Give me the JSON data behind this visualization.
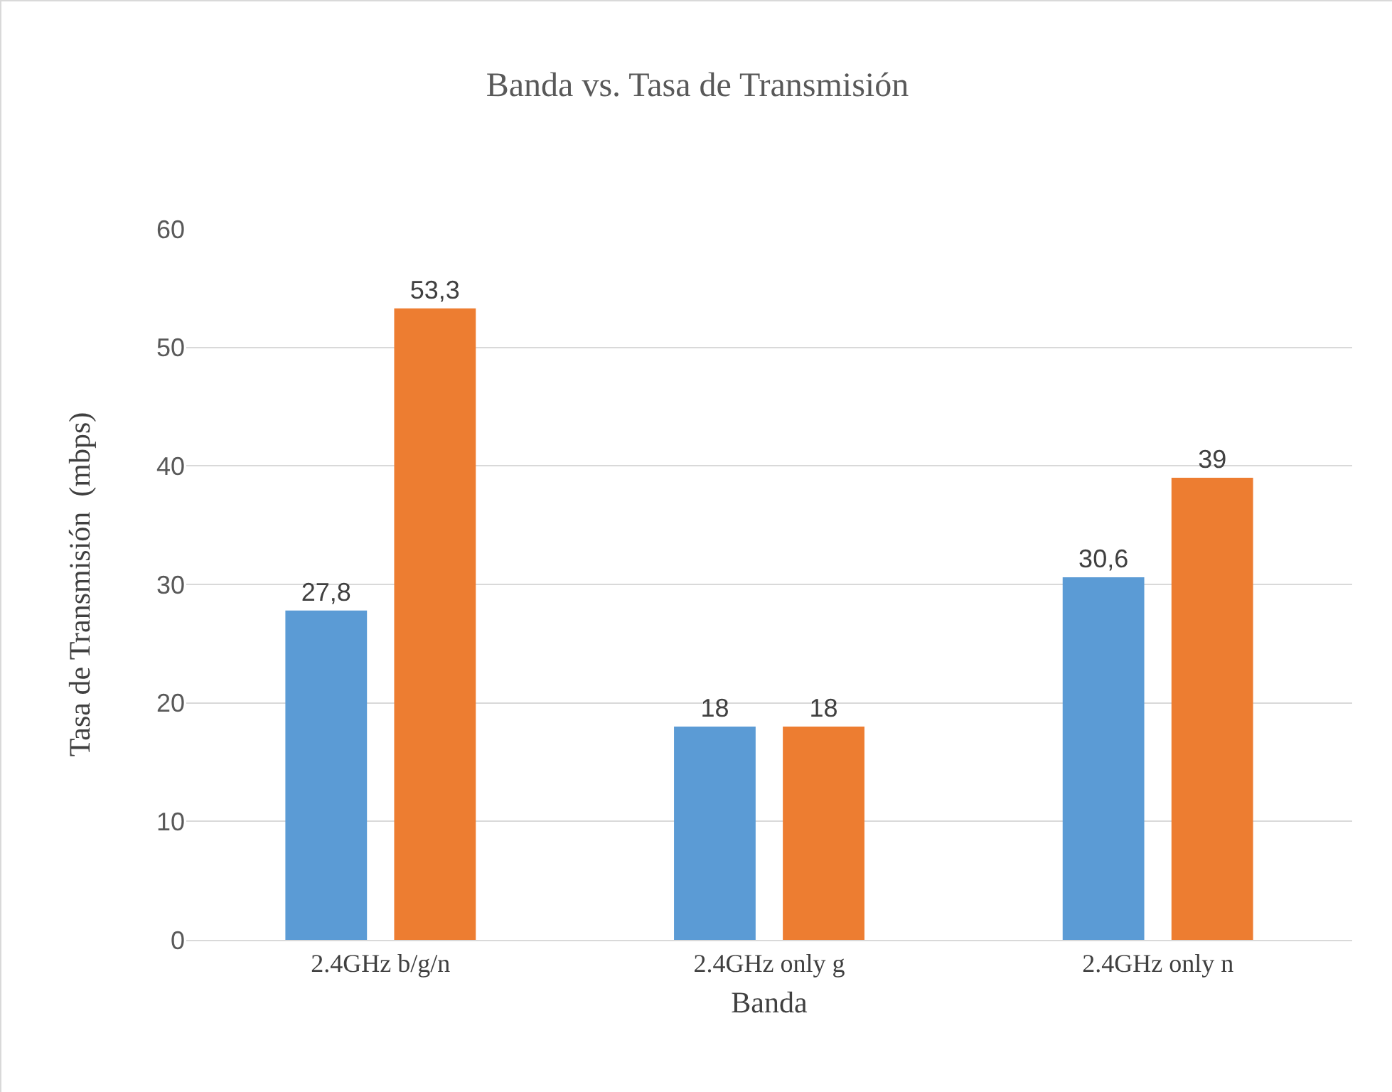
{
  "chart_data": {
    "type": "bar",
    "title": "Banda vs. Tasa de Transmisión",
    "xlabel": "Banda",
    "ylabel": "Tasa de Transmisión  (mbps)",
    "categories": [
      "2.4GHz b/g/n",
      "2.4GHz only g",
      "2.4GHz only n"
    ],
    "series": [
      {
        "color": "#5b9bd5",
        "values": [
          27.8,
          18,
          30.6
        ],
        "value_labels": [
          "27,8",
          "18",
          "30,6"
        ]
      },
      {
        "color": "#ed7d31",
        "values": [
          53.3,
          18,
          39
        ],
        "value_labels": [
          "53,3",
          "18",
          "39"
        ]
      }
    ],
    "ylim": [
      0,
      60
    ],
    "yticks": [
      0,
      10,
      20,
      30,
      40,
      50,
      60
    ],
    "grid": "y"
  }
}
